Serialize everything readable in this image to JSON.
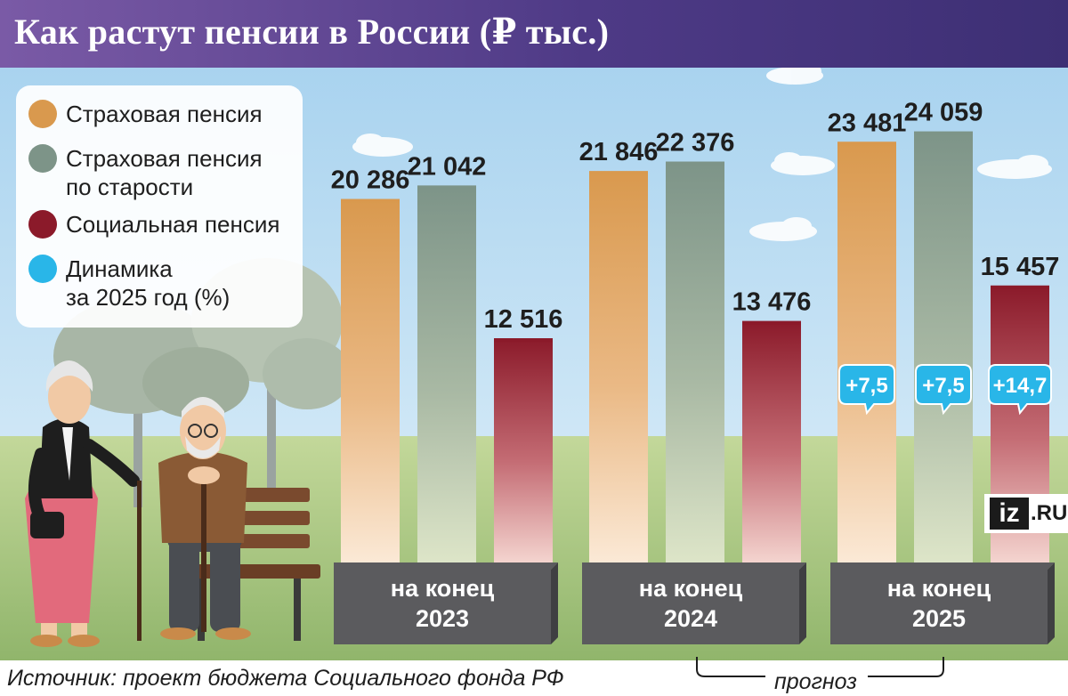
{
  "header": {
    "title": "Как растут пенсии в России (₽ тыс.)"
  },
  "legend": {
    "items": [
      {
        "label": "Страховая пенсия",
        "color": "#d9994e"
      },
      {
        "label": "Страховая пенсия\nпо старости",
        "color": "#7d9488"
      },
      {
        "label": "Социальная пенсия",
        "color": "#8b1a2a"
      },
      {
        "label": "Динамика\nза 2025 год (%)",
        "color": "#29b6e8"
      }
    ]
  },
  "chart_data": {
    "type": "bar",
    "title": "Как растут пенсии в России (₽ тыс.)",
    "categories": [
      "на конец\n2023",
      "на конец\n2024",
      "на конец\n2025"
    ],
    "series": [
      {
        "name": "Страховая пенсия",
        "values": [
          20286,
          21846,
          23481
        ],
        "labels": [
          "20 286",
          "21 846",
          "23 481"
        ],
        "color": "#d9994e"
      },
      {
        "name": "Страховая пенсия по старости",
        "values": [
          21042,
          22376,
          24059
        ],
        "labels": [
          "21 042",
          "22 376",
          "24 059"
        ],
        "color": "#7d9488"
      },
      {
        "name": "Социальная пенсия",
        "values": [
          12516,
          13476,
          15457
        ],
        "labels": [
          "12 516",
          "13 476",
          "15 457"
        ],
        "color": "#8b1a2a"
      }
    ],
    "dynamics_2025": {
      "name": "Динамика за 2025 год (%)",
      "values": [
        7.5,
        7.5,
        14.7
      ],
      "labels": [
        "+7,5",
        "+7,5",
        "+14,7"
      ],
      "color": "#29b6e8"
    },
    "legend_position": "top-left",
    "grid": false
  },
  "footer": {
    "source": "Источник: проект бюджета Социального фонда РФ",
    "forecast": "прогноз"
  },
  "logo": {
    "iz": "iz",
    "ru": ".RU"
  }
}
